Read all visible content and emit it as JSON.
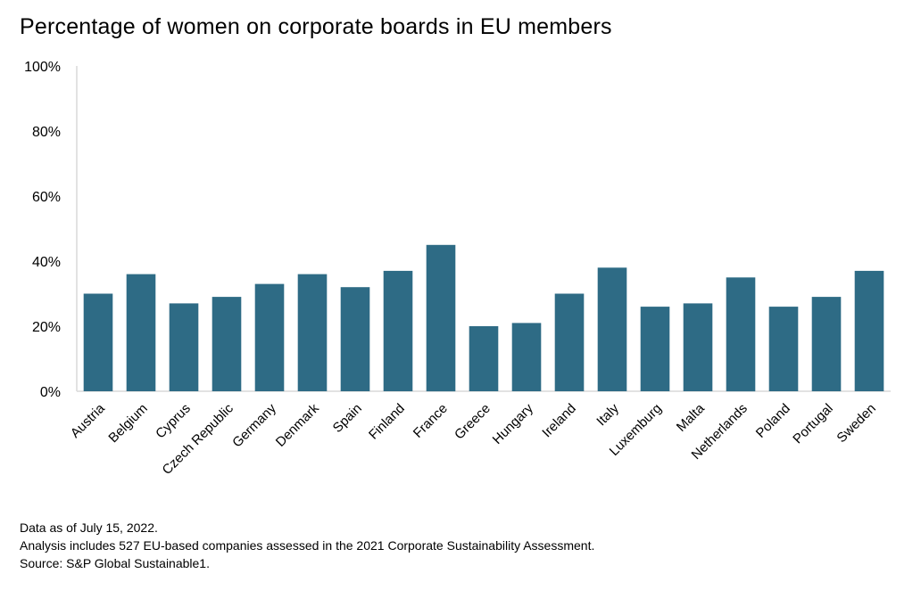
{
  "chart_data": {
    "type": "bar",
    "title": "Percentage of women on corporate boards in EU members",
    "xlabel": "",
    "ylabel": "",
    "ylim": [
      0,
      100
    ],
    "yticks": [
      "0%",
      "20%",
      "40%",
      "60%",
      "80%",
      "100%"
    ],
    "ytick_values": [
      0,
      20,
      40,
      60,
      80,
      100
    ],
    "categories": [
      "Austria",
      "Belgium",
      "Cyprus",
      "Czech Republic",
      "Germany",
      "Denmark",
      "Spain",
      "Finland",
      "France",
      "Greece",
      "Hungary",
      "Ireland",
      "Italy",
      "Luxemburg",
      "Malta",
      "Netherlands",
      "Poland",
      "Portugal",
      "Sweden"
    ],
    "values": [
      30,
      36,
      27,
      29,
      33,
      36,
      32,
      37,
      45,
      20,
      21,
      30,
      38,
      26,
      27,
      35,
      26,
      29,
      37
    ],
    "bar_color": "#2e6b85",
    "grid": false
  },
  "footer": {
    "line1": "Data as of July 15, 2022.",
    "line2": "Analysis includes 527 EU-based companies assessed in the 2021 Corporate Sustainability Assessment.",
    "line3": "Source: S&P Global Sustainable1."
  }
}
